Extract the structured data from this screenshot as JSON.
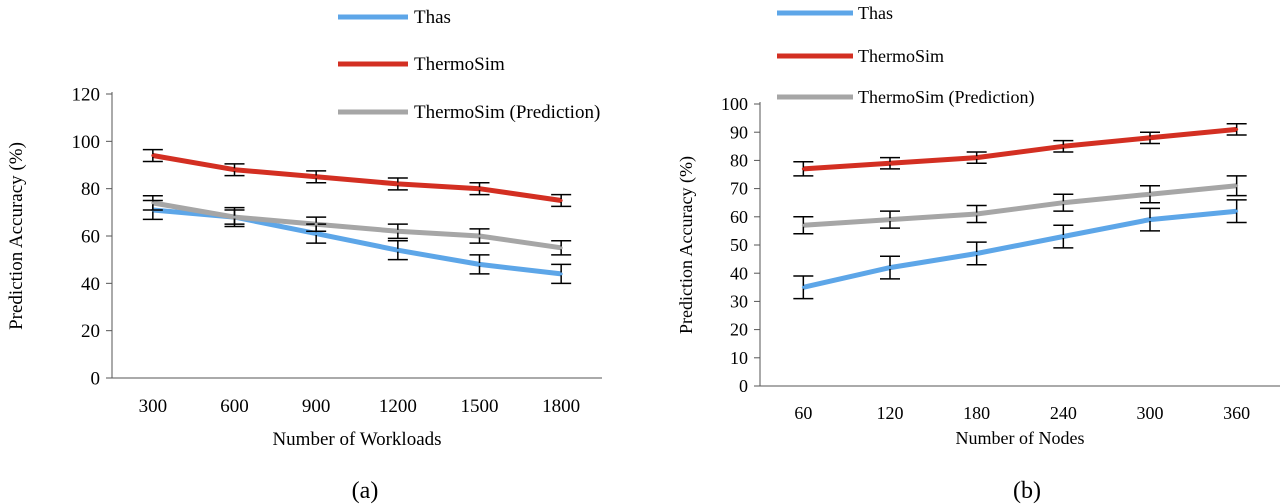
{
  "chart_data": [
    {
      "panel_label": "(a)",
      "type": "line",
      "xlabel": "Number of Workloads",
      "ylabel": "Prediction Accuracy (%)",
      "categories": [
        "300",
        "600",
        "900",
        "1200",
        "1500",
        "1800"
      ],
      "ylim": [
        0,
        120
      ],
      "yticks": [
        0,
        20,
        40,
        60,
        80,
        100,
        120
      ],
      "grid": false,
      "legend_position": "top-right",
      "series": [
        {
          "name": "Thas",
          "color": "#5da6e8",
          "values": [
            71,
            68,
            61,
            54,
            48,
            44
          ],
          "error": [
            4,
            4,
            4,
            4,
            4,
            4
          ]
        },
        {
          "name": "ThermoSim",
          "color": "#d32f22",
          "values": [
            94,
            88,
            85,
            82,
            80,
            75
          ],
          "error": [
            2.5,
            2.5,
            2.5,
            2.5,
            2.5,
            2.5
          ]
        },
        {
          "name": "ThermoSim (Prediction)",
          "color": "#a6a6a6",
          "values": [
            74,
            68,
            65,
            62,
            60,
            55
          ],
          "error": [
            3,
            3,
            3,
            3,
            3,
            3
          ]
        }
      ]
    },
    {
      "panel_label": "(b)",
      "type": "line",
      "xlabel": "Number of Nodes",
      "ylabel": "Prediction Accuracy (%)",
      "categories": [
        "60",
        "120",
        "180",
        "240",
        "300",
        "360"
      ],
      "ylim": [
        0,
        100
      ],
      "yticks": [
        0,
        10,
        20,
        30,
        40,
        50,
        60,
        70,
        80,
        90,
        100
      ],
      "grid": false,
      "legend_position": "top",
      "series": [
        {
          "name": "Thas",
          "color": "#5da6e8",
          "values": [
            35,
            42,
            47,
            53,
            59,
            62
          ],
          "error": [
            4,
            4,
            4,
            4,
            4,
            4
          ]
        },
        {
          "name": "ThermoSim",
          "color": "#d32f22",
          "values": [
            77,
            79,
            81,
            85,
            88,
            91
          ],
          "error": [
            2.5,
            2,
            2,
            2,
            2,
            2
          ]
        },
        {
          "name": "ThermoSim (Prediction)",
          "color": "#a6a6a6",
          "values": [
            57,
            59,
            61,
            65,
            68,
            71
          ],
          "error": [
            3,
            3,
            3,
            3,
            3,
            3.5
          ]
        }
      ]
    }
  ]
}
